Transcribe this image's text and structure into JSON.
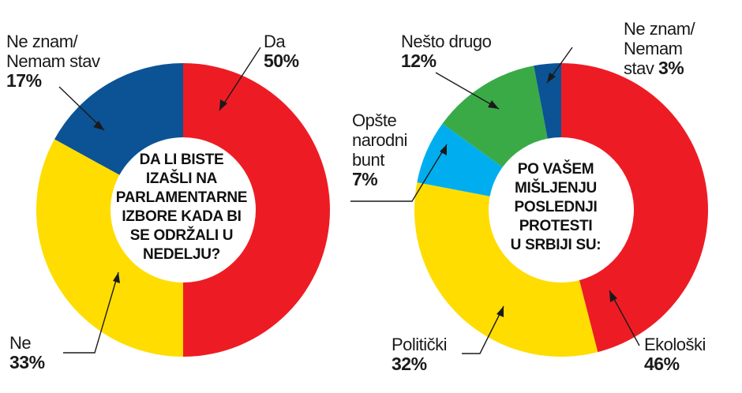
{
  "chart_data": [
    {
      "type": "pie",
      "variant": "donut",
      "center_text": "DA LI BISTE IZAŠLI NA PARLAMENTARNE IZBORE KADA BI SE ODRŽALI U NEDELJU?",
      "center_lines": [
        "DA LI BISTE",
        "IZAŠLI NA",
        "PARLAMENTARNE",
        "IZBORE KADA BI",
        "SE ODRŽALI U",
        "NEDELJU?"
      ],
      "slices": [
        {
          "label": "Da",
          "value": 50,
          "value_label": "50%",
          "color": "#ED1C24"
        },
        {
          "label": "Ne",
          "value": 33,
          "value_label": "33%",
          "color": "#FFDD00"
        },
        {
          "label": "Ne znam/ Nemam stav",
          "label_lines": [
            "Ne znam/",
            "Nemam stav"
          ],
          "value": 17,
          "value_label": "17%",
          "color": "#0B5395"
        }
      ]
    },
    {
      "type": "pie",
      "variant": "donut",
      "center_text": "PO VAŠEM MIŠLJENJU POSLEDNJI PROTESTI U SRBIJI SU:",
      "center_lines": [
        "PO VAŠEM",
        "MIŠLJENJU",
        "POSLEDNJI",
        "PROTESTI",
        "U SRBIJI SU:"
      ],
      "slices": [
        {
          "label": "Ekološki",
          "value": 46,
          "value_label": "46%",
          "color": "#ED1C24"
        },
        {
          "label": "Politički",
          "value": 32,
          "value_label": "32%",
          "color": "#FFDD00"
        },
        {
          "label": "Opšte narodni bunt",
          "label_lines": [
            "Opšte",
            "narodni",
            "bunt"
          ],
          "value": 7,
          "value_label": "7%",
          "color": "#00AEEF"
        },
        {
          "label": "Nešto drugo",
          "value": 12,
          "value_label": "12%",
          "color": "#3AAA47"
        },
        {
          "label": "Ne znam/ Nemam stav",
          "label_lines": [
            "Ne znam/",
            "Nemam",
            "stav"
          ],
          "value": 3,
          "value_label": "3%",
          "color": "#0B5395"
        }
      ]
    }
  ]
}
